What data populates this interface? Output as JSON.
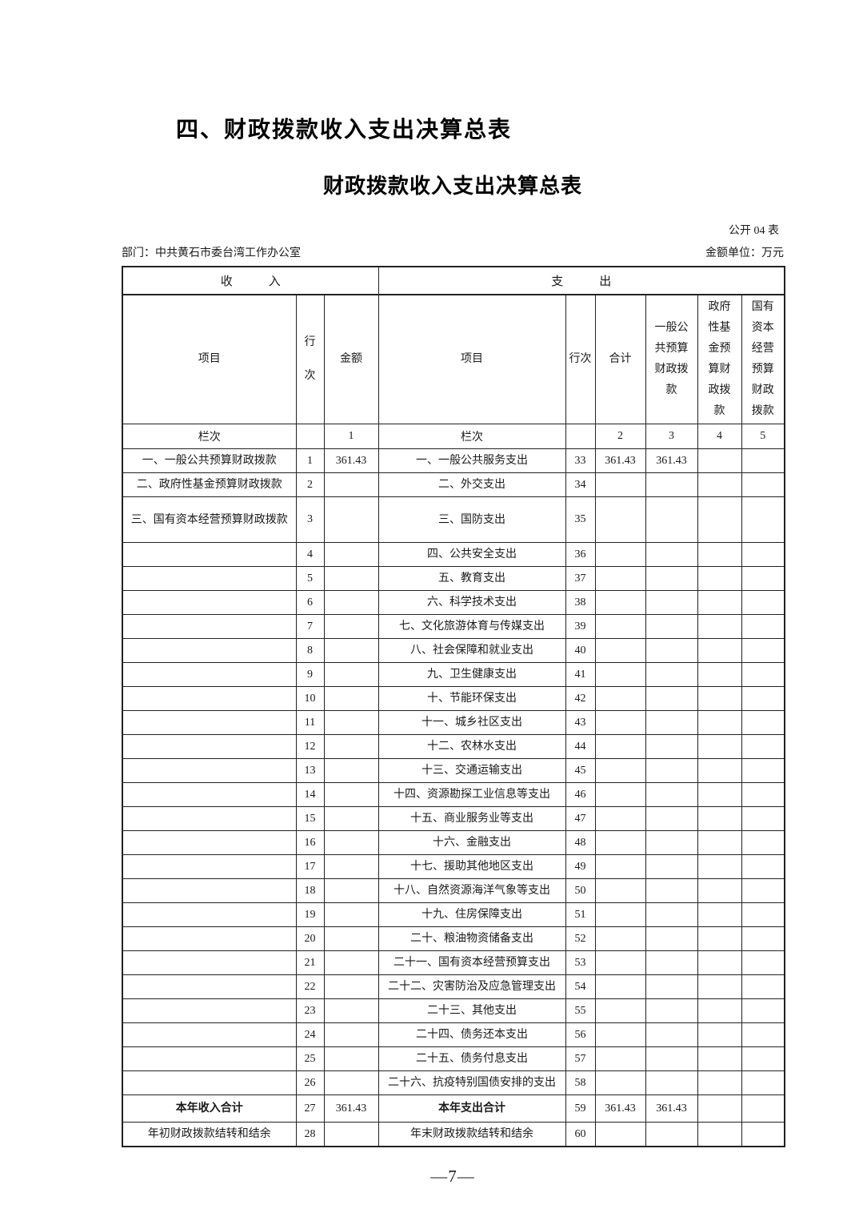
{
  "page": {
    "section_title": "四、财政拨款收入支出决算总表",
    "table_title": "财政拨款收入支出决算总表",
    "form_code": "公开 04 表",
    "department": "部门：中共黄石市委台湾工作办公室",
    "unit": "金额单位：万元",
    "page_number": "—7—"
  },
  "table": {
    "income_header": "收　　　入",
    "expenditure_header": "支　　　出",
    "col_income_item": "项目",
    "col_income_line": "行次",
    "col_income_amount": "金额",
    "col_exp_item": "项目",
    "col_exp_line": "行次",
    "col_exp_total": "合计",
    "col_exp_general": "一般公共预算财政拨款",
    "col_exp_govfund": "政府性基金预算财政拨款",
    "col_exp_statecap": "国有资本经营预算财政拨款",
    "index_row": {
      "income_label": "栏次",
      "income_amount_no": "1",
      "exp_label": "栏次",
      "exp_total_no": "2",
      "exp_general_no": "3",
      "exp_govfund_no": "4",
      "exp_statecap_no": "5"
    },
    "rows": [
      {
        "income_item": "一、一般公共预算财政拨款",
        "income_line": "1",
        "income_amount": "361.43",
        "exp_item": "一、一般公共服务支出",
        "exp_line": "33",
        "exp_total": "361.43",
        "exp_general_budget": "361.43"
      },
      {
        "income_item": "二、政府性基金预算财政拨款",
        "income_line": "2",
        "exp_item": "二、外交支出",
        "exp_line": "34"
      },
      {
        "income_item": "三、国有资本经营预算财政拨款",
        "income_line": "3",
        "exp_item": "三、国防支出",
        "exp_line": "35",
        "tall": true
      },
      {
        "income_line": "4",
        "exp_item": "四、公共安全支出",
        "exp_line": "36"
      },
      {
        "income_line": "5",
        "exp_item": "五、教育支出",
        "exp_line": "37"
      },
      {
        "income_line": "6",
        "exp_item": "六、科学技术支出",
        "exp_line": "38"
      },
      {
        "income_line": "7",
        "exp_item": "七、文化旅游体育与传媒支出",
        "exp_line": "39"
      },
      {
        "income_line": "8",
        "exp_item": "八、社会保障和就业支出",
        "exp_line": "40"
      },
      {
        "income_line": "9",
        "exp_item": "九、卫生健康支出",
        "exp_line": "41"
      },
      {
        "income_line": "10",
        "exp_item": "十、节能环保支出",
        "exp_line": "42"
      },
      {
        "income_line": "11",
        "exp_item": "十一、城乡社区支出",
        "exp_line": "43"
      },
      {
        "income_line": "12",
        "exp_item": "十二、农林水支出",
        "exp_line": "44"
      },
      {
        "income_line": "13",
        "exp_item": "十三、交通运输支出",
        "exp_line": "45"
      },
      {
        "income_line": "14",
        "exp_item": "十四、资源勘探工业信息等支出",
        "exp_line": "46"
      },
      {
        "income_line": "15",
        "exp_item": "十五、商业服务业等支出",
        "exp_line": "47"
      },
      {
        "income_line": "16",
        "exp_item": "十六、金融支出",
        "exp_line": "48"
      },
      {
        "income_line": "17",
        "exp_item": "十七、援助其他地区支出",
        "exp_line": "49"
      },
      {
        "income_line": "18",
        "exp_item": "十八、自然资源海洋气象等支出",
        "exp_line": "50"
      },
      {
        "income_line": "19",
        "exp_item": "十九、住房保障支出",
        "exp_line": "51"
      },
      {
        "income_line": "20",
        "exp_item": "二十、粮油物资储备支出",
        "exp_line": "52"
      },
      {
        "income_line": "21",
        "exp_item": "二十一、国有资本经营预算支出",
        "exp_line": "53"
      },
      {
        "income_line": "22",
        "exp_item": "二十二、灾害防治及应急管理支出",
        "exp_line": "54"
      },
      {
        "income_line": "23",
        "exp_item": "二十三、其他支出",
        "exp_line": "55"
      },
      {
        "income_line": "24",
        "exp_item": "二十四、债务还本支出",
        "exp_line": "56"
      },
      {
        "income_line": "25",
        "exp_item": "二十五、债务付息支出",
        "exp_line": "57"
      },
      {
        "income_line": "26",
        "exp_item": "二十六、抗疫特别国债安排的支出",
        "exp_line": "58"
      },
      {
        "income_item": "本年收入合计",
        "income_line": "27",
        "income_amount": "361.43",
        "exp_item": "本年支出合计",
        "exp_line": "59",
        "exp_total": "361.43",
        "exp_general_budget": "361.43",
        "emphasis": true
      },
      {
        "income_item": "年初财政拨款结转和结余",
        "income_line": "28",
        "exp_item": "年末财政拨款结转和结余",
        "exp_line": "60"
      }
    ]
  }
}
